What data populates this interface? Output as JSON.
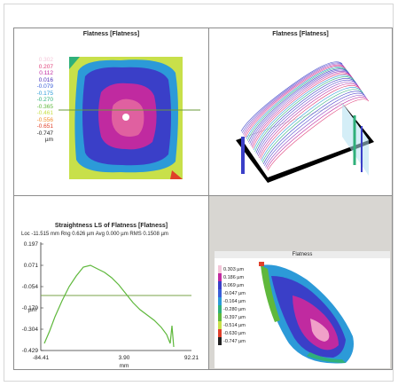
{
  "panels": {
    "flatness_2d": {
      "title": "Flatness [Flatness]",
      "legend": [
        {
          "value": "0.302",
          "color": "#f4c6d9"
        },
        {
          "value": "0.207",
          "color": "#e0407a"
        },
        {
          "value": "0.112",
          "color": "#c02aa0"
        },
        {
          "value": "0.016",
          "color": "#4a2fb8"
        },
        {
          "value": "-0.079",
          "color": "#3a5fd8"
        },
        {
          "value": "-0.175",
          "color": "#2c9ad8"
        },
        {
          "value": "-0.270",
          "color": "#2fb07a"
        },
        {
          "value": "-0.365",
          "color": "#5fb83c"
        },
        {
          "value": "-0.461",
          "color": "#c8e04a"
        },
        {
          "value": "-0.556",
          "color": "#f08a2a"
        },
        {
          "value": "-0.651",
          "color": "#e0402a"
        },
        {
          "value": "-0.747",
          "color": "#222222"
        }
      ],
      "unit": "µm"
    },
    "flatness_3d": {
      "title": "Flatness [Flatness]"
    },
    "straightness": {
      "title": "Straightness LS of Flatness [Flatness]",
      "stats": "Loc -11.515 mm  Rng 0.626 µm Avg 0.000 µm RMS 0.1508 µm",
      "y_ticks": [
        "0.197",
        "0.071",
        "-0.054",
        "-0.179",
        "-0.304",
        "-0.429"
      ],
      "y_unit": "µm",
      "x_ticks": [
        "-84.41",
        "3.90",
        "92.21"
      ],
      "x_unit": "mm"
    },
    "flatness_3d_b": {
      "title": "Flatness",
      "legend": [
        {
          "value": "0.303 µm",
          "color": "#f4c6d9"
        },
        {
          "value": "0.186 µm",
          "color": "#c02aa0"
        },
        {
          "value": "0.069 µm",
          "color": "#3a3fc8"
        },
        {
          "value": "-0.047 µm",
          "color": "#3a5fd8"
        },
        {
          "value": "-0.164 µm",
          "color": "#2c9ad8"
        },
        {
          "value": "-0.280 µm",
          "color": "#2fb07a"
        },
        {
          "value": "-0.397 µm",
          "color": "#5fb83c"
        },
        {
          "value": "-0.514 µm",
          "color": "#c8e04a"
        },
        {
          "value": "-0.630 µm",
          "color": "#e0402a"
        },
        {
          "value": "-0.747 µm",
          "color": "#222222"
        }
      ]
    }
  }
}
